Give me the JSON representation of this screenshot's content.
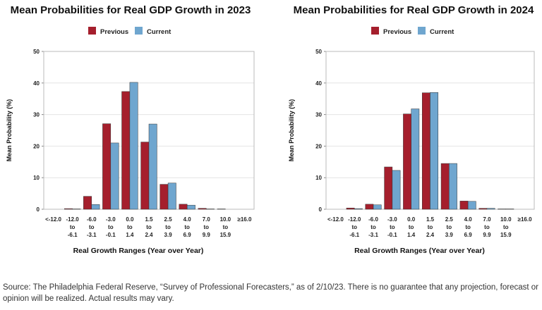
{
  "chart_data": [
    {
      "type": "bar",
      "title": "Mean Probabilities for Real GDP Growth in 2023",
      "x_label": "Real Growth Ranges (Year over Year)",
      "y_label": "Mean Probability (%)",
      "categories": [
        "<-12.0",
        "-12.0 to -6.1",
        "-6.0 to -3.1",
        "-3.0 to -0.1",
        "0.0 to 1.4",
        "1.5 to 2.4",
        "2.5 to 3.9",
        "4.0 to 6.9",
        "7.0 to 9.9",
        "10.0 to 15.9",
        "≥16.0"
      ],
      "series": [
        {
          "name": "Previous",
          "color": "#a51f2d",
          "values": [
            0,
            0.2,
            4.1,
            27.1,
            37.3,
            21.3,
            7.9,
            1.6,
            0.3,
            0.1,
            0
          ]
        },
        {
          "name": "Current",
          "color": "#6fa6cf",
          "values": [
            0,
            0.1,
            1.5,
            21.0,
            40.2,
            27.0,
            8.3,
            1.3,
            0.1,
            0.0,
            0
          ]
        }
      ],
      "ylim": [
        0,
        50
      ],
      "yticks": [
        0,
        10,
        20,
        30,
        40,
        50
      ],
      "grid": true
    },
    {
      "type": "bar",
      "title": "Mean Probabilities for Real GDP Growth in 2024",
      "x_label": "Real Growth Ranges (Year over Year)",
      "y_label": "Mean Probability (%)",
      "categories": [
        "<-12.0",
        "-12.0 to -6.1",
        "-6.0 to -3.1",
        "-3.0 to -0.1",
        "0.0 to 1.4",
        "1.5 to 2.4",
        "2.5 to 3.9",
        "4.0 to 6.9",
        "7.0 to 9.9",
        "10.0 to 15.9",
        "≥16.0"
      ],
      "series": [
        {
          "name": "Previous",
          "color": "#a51f2d",
          "values": [
            0,
            0.4,
            1.6,
            13.4,
            30.2,
            36.9,
            14.5,
            2.6,
            0.3,
            0.1,
            0
          ]
        },
        {
          "name": "Current",
          "color": "#6fa6cf",
          "values": [
            0,
            0.2,
            1.4,
            12.3,
            31.8,
            37.0,
            14.5,
            2.5,
            0.3,
            0.1,
            0
          ]
        }
      ],
      "ylim": [
        0,
        50
      ],
      "yticks": [
        0,
        10,
        20,
        30,
        40,
        50
      ],
      "grid": true
    }
  ],
  "source": "Source: The Philadelphia Federal Reserve, “Survey of Professional Forecasters,” as of 2/10/23. There is no guarantee that any projection, forecast or opinion will be realized. Actual results may vary."
}
